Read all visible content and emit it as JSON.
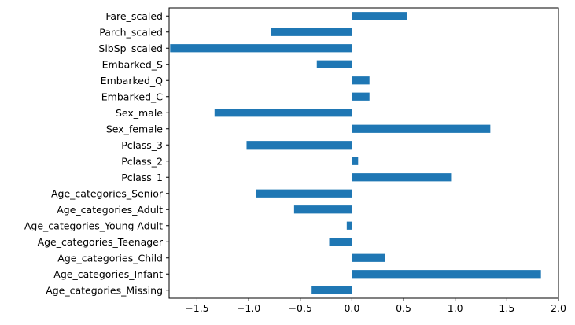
{
  "chart_data": {
    "type": "bar",
    "orientation": "horizontal",
    "categories": [
      "Age_categories_Missing",
      "Age_categories_Infant",
      "Age_categories_Child",
      "Age_categories_Teenager",
      "Age_categories_Young Adult",
      "Age_categories_Adult",
      "Age_categories_Senior",
      "Pclass_1",
      "Pclass_2",
      "Pclass_3",
      "Sex_female",
      "Sex_male",
      "Embarked_C",
      "Embarked_Q",
      "Embarked_S",
      "SibSp_scaled",
      "Parch_scaled",
      "Fare_scaled"
    ],
    "values": [
      -0.39,
      1.83,
      0.32,
      -0.22,
      -0.05,
      -0.56,
      -0.93,
      0.96,
      0.06,
      -1.02,
      1.34,
      -1.33,
      0.17,
      0.17,
      -0.34,
      -1.76,
      -0.78,
      0.53
    ],
    "xlim": [
      -1.77,
      2.0
    ],
    "xticks": [
      -1.5,
      -1.0,
      -0.5,
      0.0,
      0.5,
      1.0,
      1.5,
      2.0
    ],
    "xtick_labels": [
      "−1.5",
      "−1.0",
      "−0.5",
      "0.0",
      "0.5",
      "1.0",
      "1.5",
      "2.0"
    ],
    "title": "",
    "xlabel": "",
    "ylabel": "",
    "grid": false,
    "bar_color": "#1f77b4"
  }
}
